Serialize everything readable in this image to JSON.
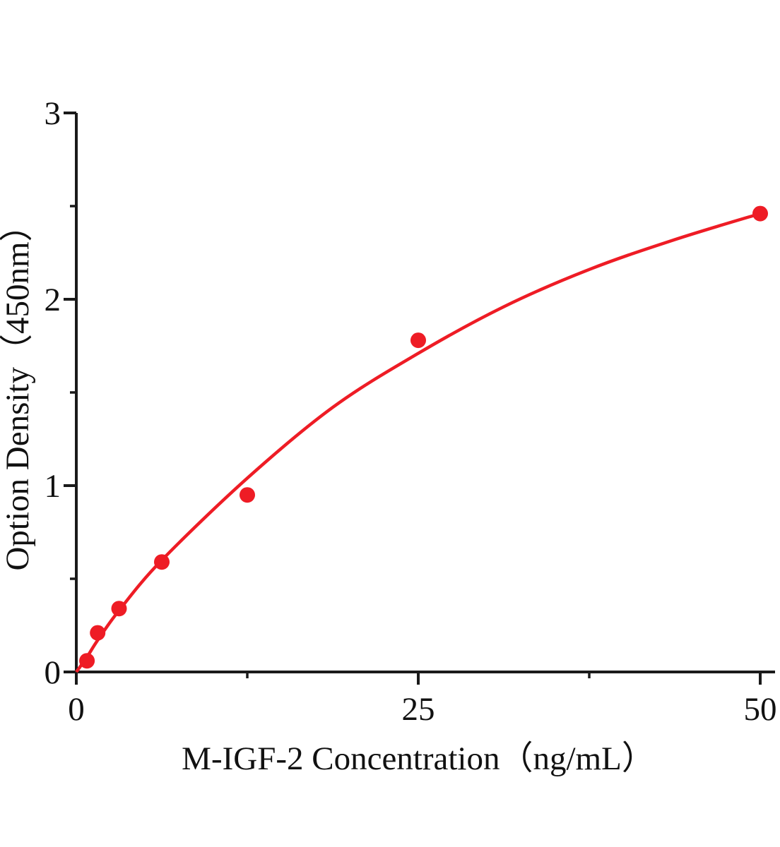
{
  "figure": {
    "background": "#ffffff"
  },
  "chart_data": {
    "type": "scatter",
    "title": "",
    "xlabel": "M-IGF-2 Concentration（ng/mL）",
    "ylabel": "Option Density（450nm）",
    "xlim": [
      0,
      50
    ],
    "ylim": [
      0,
      3
    ],
    "grid": false,
    "legend": "none",
    "axis_color": "#1a1a1a",
    "point_color": "#ee1c25",
    "line_color": "#ee1c25",
    "x_ticks_major": [
      0,
      25,
      50
    ],
    "x_ticks_minor": [
      12.5,
      37.5
    ],
    "y_ticks_major": [
      0,
      1,
      2,
      3
    ],
    "y_ticks_minor": [
      0.5,
      1.5,
      2.5
    ],
    "x_tick_labels": [
      "0",
      "25",
      "50"
    ],
    "y_tick_labels": [
      "0",
      "1",
      "2",
      "3"
    ],
    "series": [
      {
        "name": "standard-points",
        "type": "scatter",
        "color": "#ee1c25",
        "x": [
          0.78,
          1.56,
          3.125,
          6.25,
          12.5,
          25,
          50
        ],
        "y": [
          0.06,
          0.21,
          0.34,
          0.59,
          0.95,
          1.78,
          2.46
        ]
      },
      {
        "name": "fit-curve",
        "type": "line",
        "color": "#ee1c25",
        "x": [
          0,
          0.78,
          1.56,
          3.125,
          6.25,
          12.5,
          18.75,
          25,
          31.25,
          37.5,
          43.75,
          50
        ],
        "y": [
          0.0,
          0.08,
          0.17,
          0.33,
          0.6,
          1.04,
          1.42,
          1.71,
          1.96,
          2.16,
          2.32,
          2.46
        ]
      }
    ]
  }
}
